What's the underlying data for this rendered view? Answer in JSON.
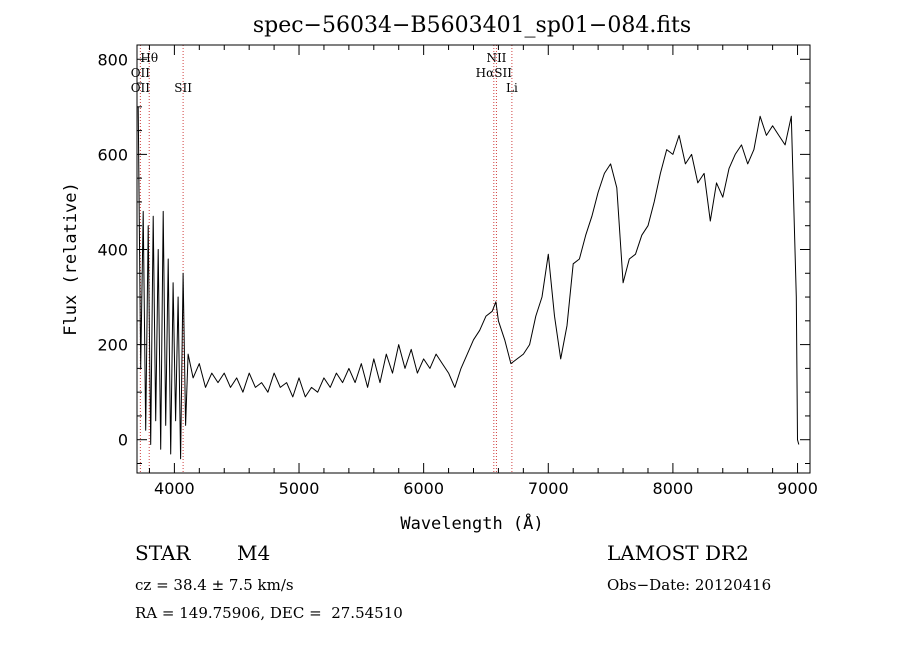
{
  "chart_data": {
    "type": "line",
    "title": "spec−56034−B5603401_sp01−084.fits",
    "xlabel": "Wavelength (Å)",
    "ylabel": "Flux (relative)",
    "xlim": [
      3700,
      9100
    ],
    "ylim": [
      -70,
      830
    ],
    "x_ticks": [
      4000,
      5000,
      6000,
      7000,
      8000,
      9000
    ],
    "y_ticks": [
      0,
      200,
      400,
      600,
      800
    ],
    "grid": false,
    "line_color": "#000000",
    "marker_color": "#d04040",
    "line_markers": [
      {
        "label": "Hθ",
        "x": 3798,
        "row": 0
      },
      {
        "label": "OII",
        "x": 3727,
        "row": 1
      },
      {
        "label": "OII",
        "x": 3727,
        "row": 2
      },
      {
        "label": "SII",
        "x": 4070,
        "row": 2
      },
      {
        "label": "NII",
        "x": 6584,
        "row": 0
      },
      {
        "label": "HαSII",
        "x": 6563,
        "row": 1
      },
      {
        "label": "Li",
        "x": 6708,
        "row": 2
      }
    ],
    "series": [
      {
        "x": [
          3710,
          3730,
          3750,
          3770,
          3790,
          3810,
          3830,
          3850,
          3870,
          3890,
          3910,
          3930,
          3950,
          3970,
          3990,
          4010,
          4030,
          4050,
          4070,
          4090,
          4110,
          4150,
          4200,
          4250,
          4300,
          4350,
          4400,
          4450,
          4500,
          4550,
          4600,
          4650,
          4700,
          4750,
          4800,
          4850,
          4900,
          4950,
          5000,
          5050,
          5100,
          5150,
          5200,
          5250,
          5300,
          5350,
          5400,
          5450,
          5500,
          5550,
          5600,
          5650,
          5700,
          5750,
          5800,
          5850,
          5900,
          5950,
          6000,
          6050,
          6100,
          6150,
          6200,
          6250,
          6300,
          6350,
          6400,
          6450,
          6500,
          6550,
          6580,
          6600,
          6650,
          6700,
          6750,
          6800,
          6850,
          6900,
          6950,
          7000,
          7050,
          7100,
          7150,
          7200,
          7250,
          7300,
          7350,
          7400,
          7450,
          7500,
          7550,
          7600,
          7650,
          7700,
          7750,
          7800,
          7850,
          7900,
          7950,
          8000,
          8050,
          8100,
          8150,
          8200,
          8250,
          8300,
          8350,
          8400,
          8450,
          8500,
          8550,
          8600,
          8650,
          8700,
          8750,
          8800,
          8850,
          8900,
          8950,
          8990,
          9000,
          9010
        ],
        "y": [
          700,
          150,
          480,
          20,
          450,
          -10,
          470,
          40,
          400,
          -20,
          480,
          30,
          380,
          -30,
          330,
          40,
          300,
          -40,
          350,
          30,
          180,
          130,
          160,
          110,
          140,
          120,
          140,
          110,
          130,
          100,
          140,
          110,
          120,
          100,
          140,
          110,
          120,
          90,
          130,
          90,
          110,
          100,
          130,
          110,
          140,
          120,
          150,
          120,
          160,
          110,
          170,
          120,
          180,
          140,
          200,
          150,
          190,
          140,
          170,
          150,
          180,
          160,
          140,
          110,
          150,
          180,
          210,
          230,
          260,
          270,
          290,
          250,
          210,
          160,
          170,
          180,
          200,
          260,
          300,
          390,
          260,
          170,
          240,
          370,
          380,
          430,
          470,
          520,
          560,
          580,
          530,
          330,
          380,
          390,
          430,
          450,
          500,
          560,
          610,
          600,
          640,
          580,
          600,
          540,
          560,
          460,
          540,
          510,
          570,
          600,
          620,
          580,
          610,
          680,
          640,
          660,
          640,
          620,
          680,
          300,
          0,
          -10
        ]
      }
    ]
  },
  "info": {
    "object_class": "STAR",
    "subclass": "M4",
    "survey": "LAMOST DR2",
    "cz": "cz = 38.4 ± 7.5 km/s",
    "obs_date": "Obs−Date: 20120416",
    "coords": "RA = 149.75906, DEC =  27.54510"
  }
}
